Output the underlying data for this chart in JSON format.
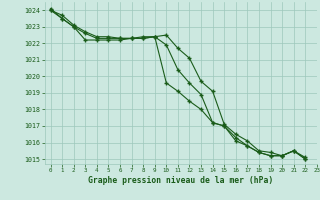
{
  "title": "Graphe pression niveau de la mer (hPa)",
  "background_color": "#cce8e0",
  "plot_bg_color": "#cce8e0",
  "line_color": "#1a5c1a",
  "grid_color": "#9dc8bc",
  "text_color": "#1a5c1a",
  "xlim": [
    -0.5,
    23
  ],
  "ylim": [
    1014.7,
    1024.5
  ],
  "yticks": [
    1015,
    1016,
    1017,
    1018,
    1019,
    1020,
    1021,
    1022,
    1023,
    1024
  ],
  "xticks": [
    0,
    1,
    2,
    3,
    4,
    5,
    6,
    7,
    8,
    9,
    10,
    11,
    12,
    13,
    14,
    15,
    16,
    17,
    18,
    19,
    20,
    21,
    22,
    23
  ],
  "series": [
    [
      1024.0,
      1023.7,
      1023.1,
      1022.7,
      1022.4,
      1022.4,
      1022.3,
      1022.3,
      1022.4,
      1022.4,
      1022.5,
      1021.7,
      1021.1,
      1019.7,
      1019.1,
      1017.1,
      1016.5,
      1016.1,
      1015.5,
      1015.4,
      1015.2,
      1015.5,
      1015.1,
      null
    ],
    [
      1024.0,
      1023.5,
      1023.0,
      1022.2,
      1022.2,
      1022.2,
      1022.2,
      1022.3,
      1022.3,
      1022.4,
      1019.6,
      1019.1,
      1018.5,
      1018.0,
      1017.2,
      1017.0,
      1016.3,
      1015.8,
      1015.4,
      1015.2,
      1015.2,
      1015.5,
      1015.0,
      null
    ],
    [
      1024.1,
      1023.5,
      1023.0,
      1022.6,
      1022.3,
      1022.3,
      1022.3,
      1022.3,
      1022.3,
      1022.4,
      1021.9,
      1020.4,
      1019.6,
      1018.9,
      1017.2,
      1017.0,
      1016.1,
      1015.8,
      1015.4,
      1015.2,
      1015.2,
      1015.5,
      1015.0,
      null
    ]
  ]
}
